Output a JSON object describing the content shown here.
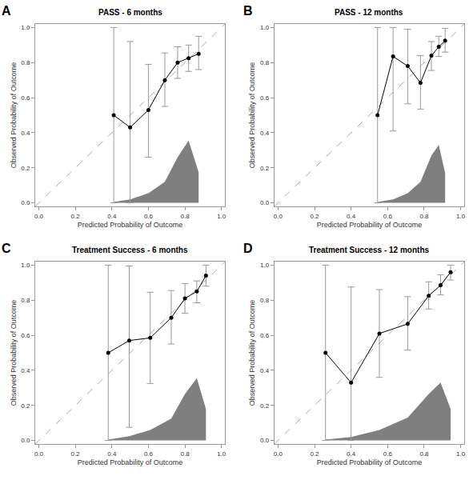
{
  "chart_data": [
    {
      "type": "line",
      "annotation": "A",
      "title": "PASS - 6 months",
      "x_label": "Predicted Probability of Outcome",
      "y_label": "Observed Probability of Outcome",
      "x": [
        0.41,
        0.5,
        0.6,
        0.69,
        0.76,
        0.82,
        0.875
      ],
      "values": [
        0.5,
        0.43,
        0.53,
        0.7,
        0.8,
        0.825,
        0.85
      ],
      "error_low": [
        0.0,
        0.0,
        0.26,
        0.55,
        0.71,
        0.75,
        0.76
      ],
      "error_high": [
        1.0,
        0.92,
        0.79,
        0.855,
        0.89,
        0.9,
        0.95
      ],
      "density": [
        0.005,
        0.02,
        0.055,
        0.12,
        0.26,
        0.355,
        0.175
      ],
      "color": "#000000",
      "grid": false,
      "xlim": [
        -0.02,
        1.02
      ],
      "ylim": [
        -0.02,
        1.02
      ],
      "xticks": [
        {
          "value": 0,
          "label": "0.0"
        },
        0.2,
        0.4,
        0.6,
        0.8,
        {
          "value": 1,
          "label": "1.0"
        }
      ],
      "yticks": [
        {
          "value": 0,
          "label": "0.0"
        },
        0.2,
        0.4,
        0.6,
        0.8,
        {
          "value": 1,
          "label": "1.0"
        }
      ]
    },
    {
      "type": "line",
      "annotation": "B",
      "title": "PASS - 12 months",
      "x_label": "Predicted Probability of Outcome",
      "y_label": "Observed Probability of Outcome",
      "x": [
        0.545,
        0.63,
        0.71,
        0.78,
        0.84,
        0.88,
        0.915
      ],
      "values": [
        0.5,
        0.835,
        0.78,
        0.685,
        0.84,
        0.89,
        0.925
      ],
      "error_low": [
        0.0,
        0.41,
        0.565,
        0.535,
        0.755,
        0.835,
        0.86
      ],
      "error_high": [
        1.0,
        1.0,
        0.99,
        0.84,
        0.92,
        0.95,
        0.995
      ],
      "density": [
        0.005,
        0.02,
        0.055,
        0.12,
        0.27,
        0.33,
        0.17
      ],
      "color": "#000000",
      "grid": false,
      "xlim": [
        -0.02,
        1.02
      ],
      "ylim": [
        -0.02,
        1.02
      ],
      "xticks": [
        {
          "value": 0,
          "label": "0.0"
        },
        0.2,
        0.4,
        0.6,
        0.8,
        {
          "value": 1,
          "label": "1.0"
        }
      ],
      "yticks": [
        {
          "value": 0,
          "label": "0.0"
        },
        0.2,
        0.4,
        0.6,
        0.8,
        {
          "value": 1,
          "label": "1.0"
        }
      ]
    },
    {
      "type": "line",
      "annotation": "C",
      "title": "Treatment Success - 6 months",
      "x_label": "Predicted Probability of Outcome",
      "y_label": "Observed Probability of Outcome",
      "x": [
        0.38,
        0.495,
        0.61,
        0.725,
        0.8,
        0.865,
        0.915
      ],
      "values": [
        0.5,
        0.57,
        0.585,
        0.7,
        0.81,
        0.85,
        0.94
      ],
      "error_low": [
        0.0,
        0.075,
        0.325,
        0.55,
        0.725,
        0.785,
        0.88
      ],
      "error_high": [
        1.0,
        0.995,
        0.845,
        0.855,
        0.895,
        0.91,
        1.0
      ],
      "density": [
        0.005,
        0.025,
        0.06,
        0.125,
        0.265,
        0.355,
        0.18
      ],
      "color": "#000000",
      "grid": false,
      "xlim": [
        -0.02,
        1.02
      ],
      "ylim": [
        -0.02,
        1.02
      ],
      "xticks": [
        {
          "value": 0,
          "label": "0.0"
        },
        0.2,
        0.4,
        0.6,
        0.8,
        {
          "value": 1,
          "label": "1.0"
        }
      ],
      "yticks": [
        {
          "value": 0,
          "label": "0.0"
        },
        0.2,
        0.4,
        0.6,
        0.8,
        {
          "value": 1,
          "label": "1.0"
        }
      ]
    },
    {
      "type": "line",
      "annotation": "D",
      "title": "Treatment Success - 12 months",
      "x_label": "Predicted Probability of Outcome",
      "y_label": "Observed Probability of Outcome",
      "x": [
        0.26,
        0.4,
        0.555,
        0.71,
        0.825,
        0.89,
        0.945
      ],
      "values": [
        0.5,
        0.33,
        0.61,
        0.665,
        0.825,
        0.885,
        0.96
      ],
      "error_low": [
        0.0,
        0.0,
        0.36,
        0.515,
        0.75,
        0.83,
        0.915
      ],
      "error_high": [
        1.0,
        0.875,
        0.86,
        0.82,
        0.905,
        0.945,
        1.0
      ],
      "density": [
        0.005,
        0.02,
        0.06,
        0.13,
        0.265,
        0.33,
        0.18
      ],
      "color": "#000000",
      "grid": false,
      "xlim": [
        -0.02,
        1.02
      ],
      "ylim": [
        -0.02,
        1.02
      ],
      "xticks": [
        {
          "value": 0,
          "label": "0.0"
        },
        0.2,
        0.4,
        0.6,
        0.8,
        {
          "value": 1,
          "label": "1.0"
        }
      ],
      "yticks": [
        {
          "value": 0,
          "label": "0.0"
        },
        0.2,
        0.4,
        0.6,
        0.8,
        {
          "value": 1,
          "label": "1.0"
        }
      ]
    }
  ]
}
